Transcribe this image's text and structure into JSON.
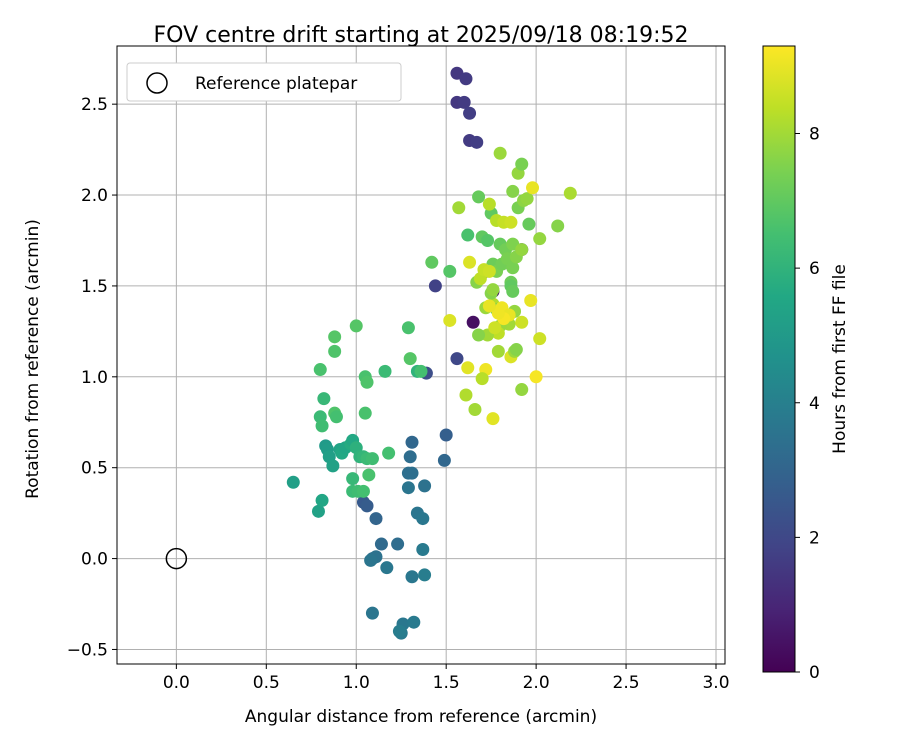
{
  "chart_data": {
    "type": "scatter",
    "title": "FOV centre drift starting at 2025/09/18 08:19:52",
    "xlabel": "Angular distance from reference (arcmin)",
    "ylabel": "Rotation from reference (arcmin)",
    "xlim": [
      -0.33,
      3.05
    ],
    "ylim": [
      -0.58,
      2.82
    ],
    "xticks": [
      "0.0",
      "0.5",
      "1.0",
      "1.5",
      "2.0",
      "2.5",
      "3.0"
    ],
    "yticks": [
      "−0.5",
      "0.0",
      "0.5",
      "1.0",
      "1.5",
      "2.0",
      "2.5"
    ],
    "grid": true,
    "legend": {
      "placement": "upper-left",
      "label": "Reference platepar"
    },
    "reference": {
      "x": 0.0,
      "y": 0.0
    },
    "colorbar": {
      "label": "Hours from first FF file",
      "colormap": "viridis",
      "range": [
        0,
        9.3
      ],
      "ticks": [
        "0",
        "2",
        "4",
        "6",
        "8"
      ]
    },
    "points": [
      [
        1.56,
        2.67,
        1.5
      ],
      [
        1.61,
        2.64,
        1.6
      ],
      [
        1.56,
        2.51,
        1.5
      ],
      [
        1.6,
        2.51,
        1.6
      ],
      [
        1.63,
        2.45,
        1.7
      ],
      [
        1.63,
        2.3,
        1.6
      ],
      [
        1.67,
        2.29,
        1.7
      ],
      [
        1.92,
        1.7,
        1.5
      ],
      [
        1.72,
        1.58,
        1.6
      ],
      [
        1.44,
        1.5,
        1.8
      ],
      [
        1.76,
        1.47,
        0.5
      ],
      [
        1.65,
        1.3,
        0.4
      ],
      [
        1.56,
        1.1,
        2.0
      ],
      [
        1.39,
        1.02,
        2.2
      ],
      [
        1.5,
        0.68,
        2.8
      ],
      [
        1.31,
        0.64,
        3.1
      ],
      [
        1.49,
        0.54,
        3.1
      ],
      [
        1.29,
        0.47,
        3.4
      ],
      [
        1.31,
        0.47,
        3.4
      ],
      [
        1.3,
        0.56,
        3.3
      ],
      [
        1.38,
        0.4,
        3.5
      ],
      [
        1.29,
        0.39,
        3.6
      ],
      [
        1.34,
        0.25,
        3.6
      ],
      [
        1.37,
        0.22,
        3.7
      ],
      [
        1.04,
        0.31,
        2.6
      ],
      [
        1.06,
        0.29,
        2.7
      ],
      [
        1.11,
        0.22,
        3.0
      ],
      [
        1.14,
        0.08,
        3.2
      ],
      [
        1.23,
        0.08,
        3.3
      ],
      [
        1.09,
        0.0,
        3.4
      ],
      [
        1.11,
        0.01,
        3.5
      ],
      [
        1.08,
        -0.01,
        3.6
      ],
      [
        1.17,
        -0.05,
        3.7
      ],
      [
        1.31,
        -0.1,
        3.7
      ],
      [
        1.37,
        0.05,
        3.8
      ],
      [
        1.38,
        -0.09,
        3.9
      ],
      [
        1.09,
        -0.3,
        3.6
      ],
      [
        1.26,
        -0.36,
        3.7
      ],
      [
        1.32,
        -0.35,
        3.8
      ],
      [
        1.25,
        -0.41,
        3.8
      ],
      [
        1.24,
        -0.4,
        3.9
      ],
      [
        0.65,
        0.42,
        5.2
      ],
      [
        0.79,
        0.26,
        5.3
      ],
      [
        0.81,
        0.32,
        5.5
      ],
      [
        0.83,
        0.62,
        5.0
      ],
      [
        0.84,
        0.6,
        5.1
      ],
      [
        0.85,
        0.56,
        5.2
      ],
      [
        0.87,
        0.51,
        5.3
      ],
      [
        0.91,
        0.6,
        5.4
      ],
      [
        0.92,
        0.58,
        5.6
      ],
      [
        0.94,
        0.61,
        5.5
      ],
      [
        0.97,
        0.63,
        5.7
      ],
      [
        0.98,
        0.65,
        5.6
      ],
      [
        1.0,
        0.61,
        5.9
      ],
      [
        1.02,
        0.56,
        6.0
      ],
      [
        1.04,
        0.56,
        6.1
      ],
      [
        1.06,
        0.55,
        6.3
      ],
      [
        1.09,
        0.55,
        6.4
      ],
      [
        0.98,
        0.44,
        6.2
      ],
      [
        0.98,
        0.37,
        6.3
      ],
      [
        1.01,
        0.37,
        6.4
      ],
      [
        1.04,
        0.37,
        6.5
      ],
      [
        1.07,
        0.46,
        6.6
      ],
      [
        1.18,
        0.58,
        6.5
      ],
      [
        0.8,
        0.78,
        6.3
      ],
      [
        0.81,
        0.73,
        6.4
      ],
      [
        0.82,
        0.88,
        6.2
      ],
      [
        0.88,
        0.8,
        6.7
      ],
      [
        0.89,
        0.78,
        6.5
      ],
      [
        1.05,
        0.8,
        6.6
      ],
      [
        0.8,
        1.04,
        6.6
      ],
      [
        0.88,
        1.14,
        6.7
      ],
      [
        0.88,
        1.22,
        6.8
      ],
      [
        1.05,
        1.0,
        6.6
      ],
      [
        1.06,
        0.97,
        6.7
      ],
      [
        1.16,
        1.03,
        6.3
      ],
      [
        1.0,
        1.28,
        6.8
      ],
      [
        1.29,
        1.27,
        6.6
      ],
      [
        1.3,
        1.1,
        6.8
      ],
      [
        1.34,
        1.03,
        6.0
      ],
      [
        1.36,
        1.03,
        6.5
      ],
      [
        1.42,
        1.63,
        7.0
      ],
      [
        1.52,
        1.58,
        6.8
      ],
      [
        1.62,
        1.78,
        6.6
      ],
      [
        1.68,
        1.99,
        7.1
      ],
      [
        1.7,
        1.77,
        7.0
      ],
      [
        1.73,
        1.75,
        6.8
      ],
      [
        1.75,
        1.9,
        7.0
      ],
      [
        1.76,
        1.62,
        7.2
      ],
      [
        1.78,
        1.58,
        7.4
      ],
      [
        1.8,
        1.73,
        7.1
      ],
      [
        1.81,
        1.62,
        7.3
      ],
      [
        1.83,
        1.7,
        7.3
      ],
      [
        1.84,
        1.65,
        7.4
      ],
      [
        1.87,
        1.73,
        7.5
      ],
      [
        1.87,
        1.6,
        7.4
      ],
      [
        1.86,
        1.52,
        7.2
      ],
      [
        1.86,
        1.5,
        7.0
      ],
      [
        1.87,
        1.47,
        7.1
      ],
      [
        1.89,
        1.66,
        7.6
      ],
      [
        1.92,
        1.7,
        7.8
      ],
      [
        1.9,
        1.93,
        7.4
      ],
      [
        1.87,
        2.02,
        7.6
      ],
      [
        1.93,
        1.97,
        7.7
      ],
      [
        1.95,
        1.98,
        7.8
      ],
      [
        1.96,
        1.84,
        7.1
      ],
      [
        1.9,
        2.12,
        7.8
      ],
      [
        1.92,
        2.17,
        7.4
      ],
      [
        1.8,
        2.23,
        7.9
      ],
      [
        1.74,
        1.95,
        8.3
      ],
      [
        1.57,
        1.93,
        8.0
      ],
      [
        1.78,
        1.86,
        8.3
      ],
      [
        1.82,
        1.85,
        8.5
      ],
      [
        1.86,
        1.85,
        8.6
      ],
      [
        1.98,
        2.04,
        9.0
      ],
      [
        2.02,
        1.76,
        7.8
      ],
      [
        2.12,
        1.83,
        7.6
      ],
      [
        2.19,
        2.01,
        8.1
      ],
      [
        1.76,
        1.4,
        8.2
      ],
      [
        1.72,
        1.38,
        7.9
      ],
      [
        1.78,
        1.37,
        7.5
      ],
      [
        1.75,
        1.46,
        7.6
      ],
      [
        1.76,
        1.48,
        7.8
      ],
      [
        1.67,
        1.52,
        7.6
      ],
      [
        1.63,
        1.63,
        8.8
      ],
      [
        1.69,
        1.54,
        8.4
      ],
      [
        1.88,
        1.36,
        7.8
      ],
      [
        1.85,
        1.29,
        8.0
      ],
      [
        1.8,
        1.28,
        7.9
      ],
      [
        1.79,
        1.24,
        8.4
      ],
      [
        1.73,
        1.23,
        8.0
      ],
      [
        1.68,
        1.23,
        7.6
      ],
      [
        1.92,
        1.3,
        8.6
      ],
      [
        1.97,
        1.42,
        9.0
      ],
      [
        1.81,
        1.38,
        9.1
      ],
      [
        1.85,
        1.34,
        9.0
      ],
      [
        1.82,
        1.32,
        9.2
      ],
      [
        1.79,
        1.35,
        9.1
      ],
      [
        1.74,
        1.39,
        9.0
      ],
      [
        1.77,
        1.27,
        8.6
      ],
      [
        1.71,
        1.59,
        8.5
      ],
      [
        1.74,
        1.58,
        8.6
      ],
      [
        1.52,
        1.31,
        8.8
      ],
      [
        1.79,
        1.14,
        8.0
      ],
      [
        1.86,
        1.11,
        8.8
      ],
      [
        1.88,
        1.14,
        7.9
      ],
      [
        1.89,
        1.15,
        7.6
      ],
      [
        1.72,
        1.04,
        9.1
      ],
      [
        1.7,
        0.99,
        8.3
      ],
      [
        1.62,
        1.05,
        8.9
      ],
      [
        1.61,
        0.9,
        8.2
      ],
      [
        1.66,
        0.82,
        8.0
      ],
      [
        1.76,
        0.77,
        8.9
      ],
      [
        1.92,
        0.93,
        7.8
      ],
      [
        2.0,
        1.0,
        9.2
      ],
      [
        2.02,
        1.21,
        8.6
      ]
    ]
  }
}
